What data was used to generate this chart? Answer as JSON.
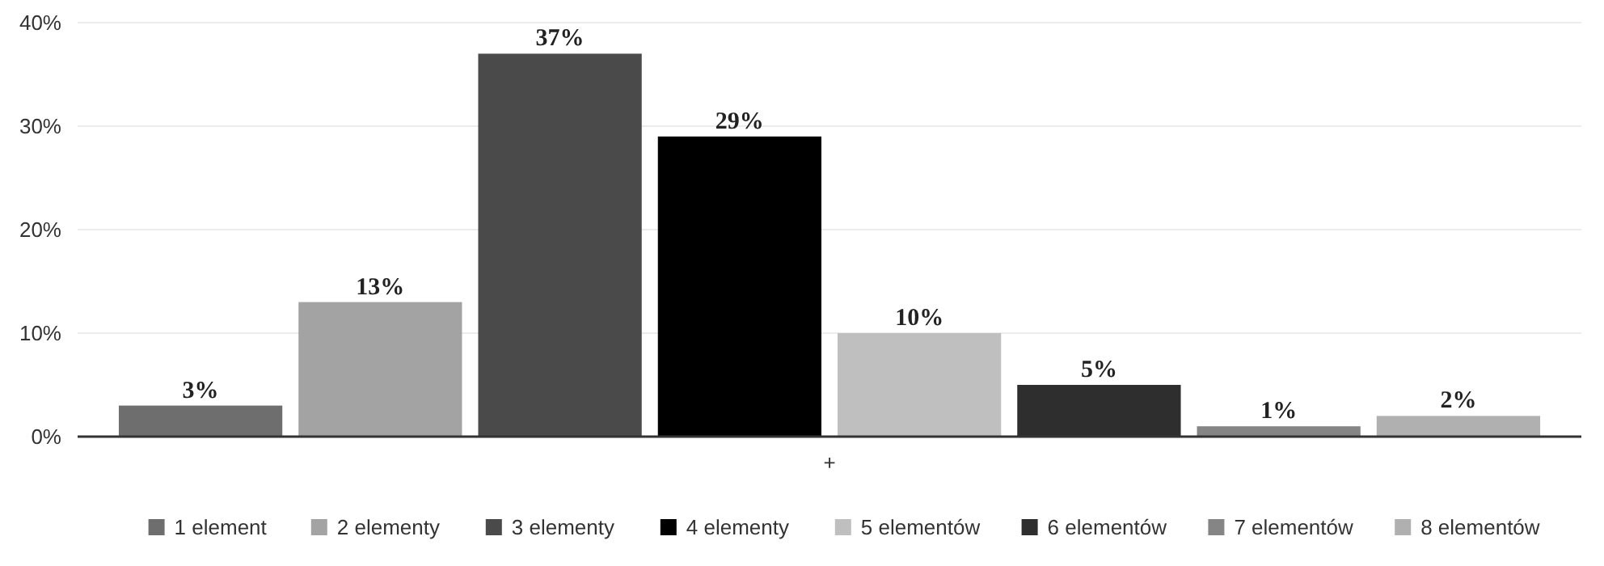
{
  "chart_data": {
    "type": "bar",
    "categories": [
      "+"
    ],
    "series": [
      {
        "name": "1 element",
        "color": "#6e6e6e",
        "values": [
          3
        ],
        "value_labels": [
          "3%"
        ]
      },
      {
        "name": "2 elementy",
        "color": "#a3a3a3",
        "values": [
          13
        ],
        "value_labels": [
          "13%"
        ]
      },
      {
        "name": "3 elementy",
        "color": "#4a4a4a",
        "values": [
          37
        ],
        "value_labels": [
          "37%"
        ]
      },
      {
        "name": "4 elementy",
        "color": "#000000",
        "values": [
          29
        ],
        "value_labels": [
          "29%"
        ]
      },
      {
        "name": "5 elementów",
        "color": "#bfbfbf",
        "values": [
          10
        ],
        "value_labels": [
          "10%"
        ]
      },
      {
        "name": "6 elementów",
        "color": "#2e2e2e",
        "values": [
          5
        ],
        "value_labels": [
          "5%"
        ]
      },
      {
        "name": "7 elementów",
        "color": "#858585",
        "values": [
          1
        ],
        "value_labels": [
          "1%"
        ]
      },
      {
        "name": "8 elementów",
        "color": "#b0b0b0",
        "values": [
          2
        ],
        "value_labels": [
          "2%"
        ]
      }
    ],
    "ylim": [
      0,
      40
    ],
    "yticks": [
      {
        "value": 0,
        "label": "0%"
      },
      {
        "value": 10,
        "label": "10%"
      },
      {
        "value": 20,
        "label": "20%"
      },
      {
        "value": 30,
        "label": "30%"
      },
      {
        "value": 40,
        "label": "40%"
      }
    ],
    "grid": "y",
    "legend": "bottom right"
  }
}
